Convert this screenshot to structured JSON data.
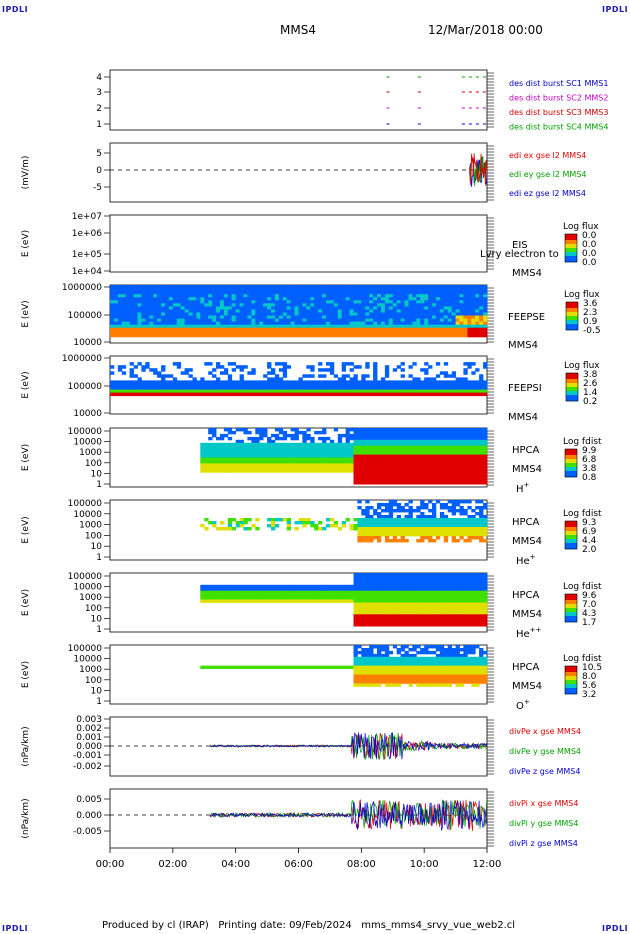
{
  "corner_labels": {
    "tl": "IPDLI",
    "tr": "IPDLI",
    "bl": "IPDLI",
    "br": "IPDLI"
  },
  "header": {
    "spacecraft": "MMS4",
    "date": "12/Mar/2018 00:00"
  },
  "footer": "Produced by cl (IRAP)   Printing date: 09/Feb/2024   mms_mms4_srvy_vue_web2.cl",
  "colors": {
    "mms1": "#2a8a2a",
    "mms2": "#c000c0",
    "mms3": "#d00000",
    "mms4": "#0000c0",
    "red": "#e00000",
    "green": "#00a000",
    "blue": "#0000d0"
  },
  "chart_data": [
    {
      "id": "burst",
      "type": "scatter",
      "y_ticks": [
        "4",
        "3",
        "2",
        "1"
      ],
      "legend": [
        {
          "text": "des dist burst SC1 MMS1",
          "color": "#0000c0"
        },
        {
          "text": "des dist burst SC2 MMS2",
          "color": "#c000c0"
        },
        {
          "text": "des dist burst SC3 MMS3",
          "color": "#d00000"
        },
        {
          "text": "des dist burst SC4 MMS4",
          "color": "#00a000"
        }
      ]
    },
    {
      "id": "edi",
      "type": "line",
      "ylabel": "(mV/m)",
      "y_ticks": [
        "5",
        "0",
        "-5"
      ],
      "legend": [
        {
          "text": "edi ex gse l2 MMS4",
          "color": "#e00000"
        },
        {
          "text": "edi ey gse l2 MMS4",
          "color": "#00a000"
        },
        {
          "text": "edi ez gse l2 MMS4",
          "color": "#0000d0"
        }
      ]
    },
    {
      "id": "eis",
      "type": "heatmap",
      "ylabel": "E (eV)",
      "y_ticks": [
        "1e+07",
        "1e+06",
        "1e+05",
        "1e+04"
      ],
      "labels": [
        "EIS",
        "MMS4"
      ],
      "overlay": "Lvry electron to",
      "colorbar": {
        "title": "Log flux",
        "ticks": [
          "0.0",
          "0.0",
          "0.0",
          "0.0"
        ]
      }
    },
    {
      "id": "feepse",
      "type": "heatmap",
      "ylabel": "E (eV)",
      "y_ticks": [
        "1000000",
        "100000",
        "10000"
      ],
      "labels": [
        "FEEPSE",
        "MMS4"
      ],
      "colorbar": {
        "title": "Log flux",
        "ticks": [
          "3.6",
          "2.3",
          "0.9",
          "-0.5"
        ]
      }
    },
    {
      "id": "feepsi",
      "type": "heatmap",
      "ylabel": "E (eV)",
      "y_ticks": [
        "1000000",
        "100000",
        "10000"
      ],
      "labels": [
        "FEEPSI",
        "MMS4"
      ],
      "colorbar": {
        "title": "Log flux",
        "ticks": [
          "3.8",
          "2.6",
          "1.4",
          "0.2"
        ]
      }
    },
    {
      "id": "hpca_h",
      "type": "heatmap",
      "ylabel": "E (eV)",
      "y_ticks": [
        "100000",
        "10000",
        "1000",
        "100",
        "10",
        "1"
      ],
      "labels": [
        "HPCA",
        "MMS4"
      ],
      "species": "H",
      "species_sup": "+",
      "colorbar": {
        "title": "Log fdist",
        "ticks": [
          "9.9",
          "6.8",
          "3.8",
          "0.8"
        ]
      }
    },
    {
      "id": "hpca_he",
      "type": "heatmap",
      "ylabel": "E (eV)",
      "y_ticks": [
        "100000",
        "10000",
        "1000",
        "100",
        "10",
        "1"
      ],
      "labels": [
        "HPCA",
        "MMS4"
      ],
      "species": "He",
      "species_sup": "+",
      "colorbar": {
        "title": "Log fdist",
        "ticks": [
          "9.3",
          "6.9",
          "4.4",
          "2.0"
        ]
      }
    },
    {
      "id": "hpca_hepp",
      "type": "heatmap",
      "ylabel": "E (eV)",
      "y_ticks": [
        "100000",
        "10000",
        "1000",
        "100",
        "10",
        "1"
      ],
      "labels": [
        "HPCA",
        "MMS4"
      ],
      "species": "He",
      "species_sup": "++",
      "colorbar": {
        "title": "Log fdist",
        "ticks": [
          "9.6",
          "7.0",
          "4.3",
          "1.7"
        ]
      }
    },
    {
      "id": "hpca_o",
      "type": "heatmap",
      "ylabel": "E (eV)",
      "y_ticks": [
        "100000",
        "10000",
        "1000",
        "100",
        "10",
        "1"
      ],
      "labels": [
        "HPCA",
        "MMS4"
      ],
      "species": "O",
      "species_sup": "+",
      "colorbar": {
        "title": "Log fdist",
        "ticks": [
          "10.5",
          "8.0",
          "5.6",
          "3.2"
        ]
      }
    },
    {
      "id": "divpe",
      "type": "line",
      "ylabel": "(nPa/km)",
      "y_ticks": [
        "0.003",
        "0.002",
        "0.001",
        "0.000",
        "-0.001",
        "-0.002"
      ],
      "legend": [
        {
          "text": "divPe x gse MMS4",
          "color": "#e00000"
        },
        {
          "text": "divPe y gse MMS4",
          "color": "#00a000"
        },
        {
          "text": "divPe z gse MMS4",
          "color": "#0000d0"
        }
      ]
    },
    {
      "id": "divpi",
      "type": "line",
      "ylabel": "(nPa/km)",
      "y_ticks": [
        "0.005",
        "0.000",
        "-0.005"
      ],
      "legend": [
        {
          "text": "divPi x gse MMS4",
          "color": "#e00000"
        },
        {
          "text": "divPi y gse MMS4",
          "color": "#00a000"
        },
        {
          "text": "divPi z gse MMS4",
          "color": "#0000d0"
        }
      ]
    }
  ],
  "x_axis": {
    "ticks": [
      "00:00",
      "02:00",
      "04:00",
      "06:00",
      "08:00",
      "10:00",
      "12:00"
    ]
  }
}
